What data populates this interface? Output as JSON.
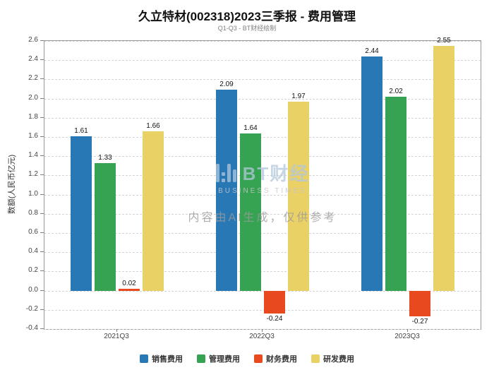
{
  "title": "久立特材(002318)2023三季报 - 费用管理",
  "subtitle": "Q1-Q3 - BT财经绘制",
  "watermark": {
    "logo_text": "BT财经",
    "logo_sub": "BUSINESS TIMES",
    "disclaimer": "内容由AI生成，仅供参考"
  },
  "chart_data": {
    "type": "bar",
    "categories": [
      "2021Q3",
      "2022Q3",
      "2023Q3"
    ],
    "series": [
      {
        "name": "销售费用",
        "color": "#2878b5",
        "values": [
          1.61,
          2.09,
          2.44
        ]
      },
      {
        "name": "管理费用",
        "color": "#36a352",
        "values": [
          1.33,
          1.64,
          2.02
        ]
      },
      {
        "name": "财务费用",
        "color": "#e8491f",
        "values": [
          0.02,
          -0.24,
          -0.27
        ]
      },
      {
        "name": "研发费用",
        "color": "#e9d166",
        "values": [
          1.66,
          1.97,
          2.55
        ]
      }
    ],
    "ylabel": "数额(人民币亿元)",
    "ylim": [
      -0.4,
      2.6
    ],
    "ytick_step": 0.2,
    "grid": true,
    "legend_position": "bottom"
  }
}
